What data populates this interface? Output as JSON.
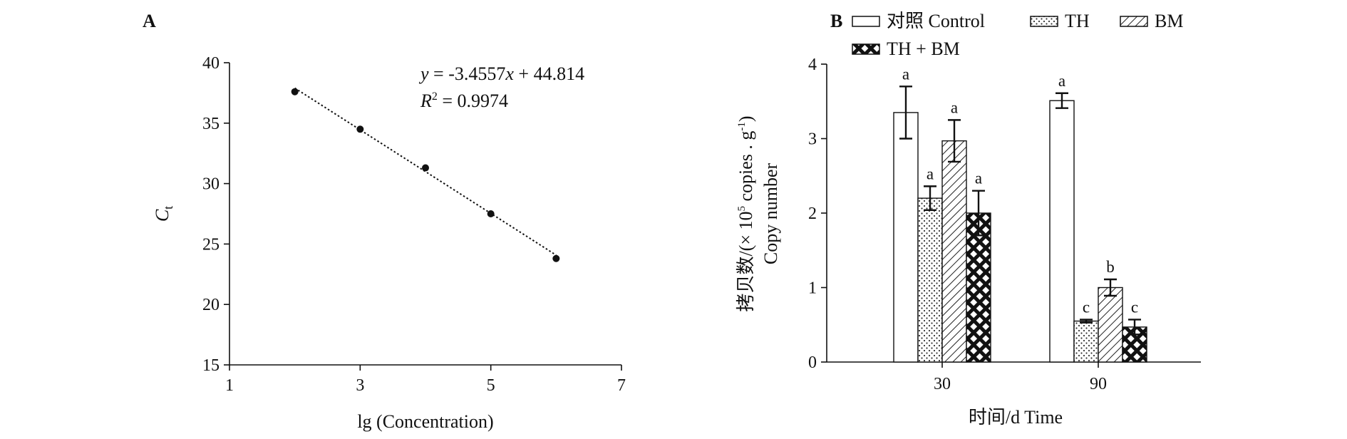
{
  "chart_data": [
    {
      "type": "scatter",
      "panel_label": "A",
      "x": [
        2,
        3,
        4,
        5,
        6
      ],
      "y": [
        37.6,
        34.5,
        31.3,
        27.5,
        23.8
      ],
      "xlim": [
        1,
        7
      ],
      "ylim": [
        15,
        40
      ],
      "xticks": [
        1,
        3,
        5,
        7
      ],
      "yticks": [
        15,
        20,
        25,
        30,
        35,
        40
      ],
      "xlabel": "lg (Concentration)",
      "ylabel": "Ct",
      "ylabel_main": "C",
      "ylabel_sub": "t",
      "trendline": {
        "slope": -3.4557,
        "intercept": 44.814,
        "style": "dotted"
      },
      "annotation": {
        "eq_y": "y",
        "eq_mid": " = -3.4557",
        "eq_x": "x",
        "eq_end": " + 44.814",
        "r2_r": "R",
        "r2_sup": "2",
        "r2_val": " = 0.9974"
      },
      "grid": false
    },
    {
      "type": "bar",
      "panel_label": "B",
      "categories": [
        "30",
        "90"
      ],
      "series": [
        {
          "name": "对照 Control",
          "values": [
            3.35,
            3.51
          ],
          "errors": [
            0.35,
            0.1
          ],
          "letters": [
            "a",
            "a"
          ],
          "pattern": "none"
        },
        {
          "name": "TH",
          "values": [
            2.2,
            0.55
          ],
          "errors": [
            0.16,
            0.02
          ],
          "letters": [
            "a",
            "c"
          ],
          "pattern": "dots"
        },
        {
          "name": "BM",
          "values": [
            2.97,
            1.0
          ],
          "errors": [
            0.28,
            0.11
          ],
          "letters": [
            "a",
            "b"
          ],
          "pattern": "diagonal"
        },
        {
          "name": "TH + BM",
          "values": [
            2.0,
            0.47
          ],
          "errors": [
            0.3,
            0.1
          ],
          "letters": [
            "a",
            "c"
          ],
          "pattern": "crosshatch"
        }
      ],
      "ylim": [
        0,
        4
      ],
      "yticks": [
        0,
        1,
        2,
        3,
        4
      ],
      "xlabel": "时间/d Time",
      "ylabel_line1_pre": "拷贝数/(× 10",
      "ylabel_line1_sup5": "5",
      "ylabel_line1_mid": " copies . g",
      "ylabel_line1_sup": "-1",
      "ylabel_line1_post": ")",
      "ylabel_line2": "Copy number",
      "legend": "top",
      "grid": false
    }
  ]
}
